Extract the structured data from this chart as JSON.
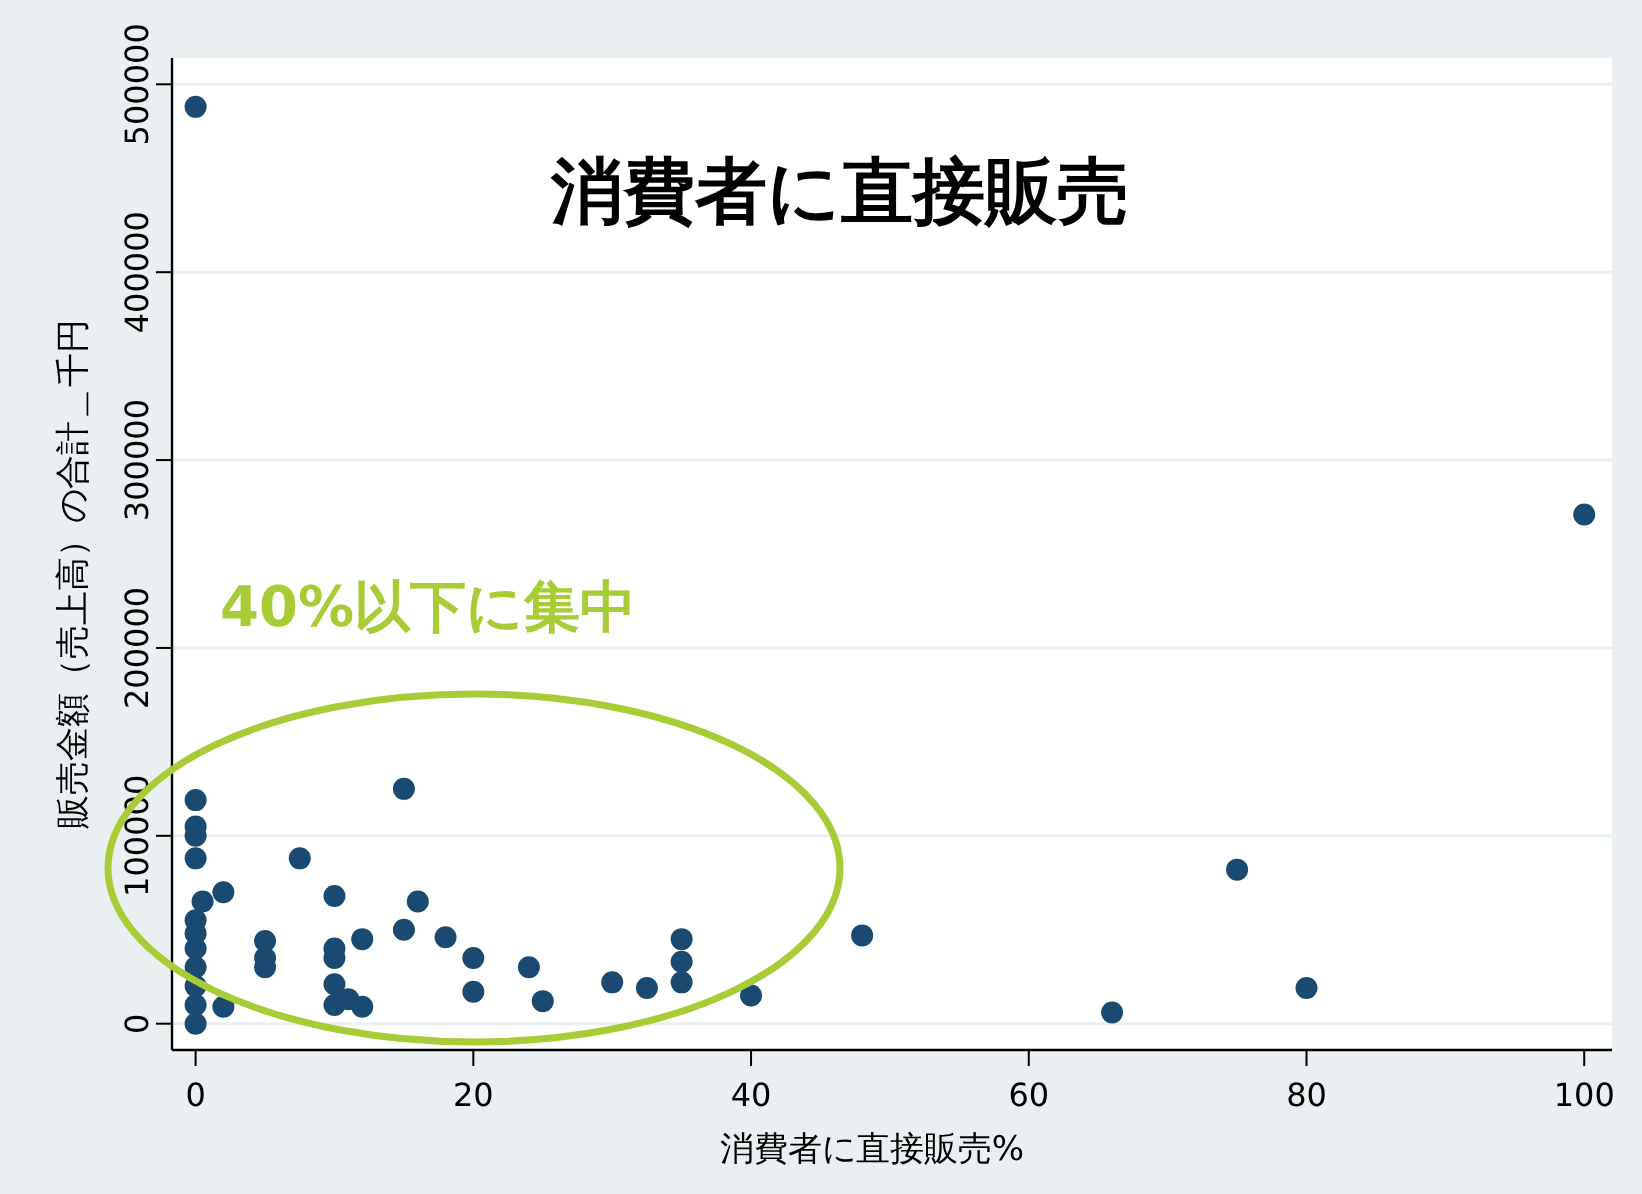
{
  "chart_data": {
    "type": "scatter",
    "title": "消費者に直接販売",
    "xlabel": "消費者に直接販売%",
    "ylabel": "販売金額（売上高）の合計＿千円",
    "annotations": [
      "40%以下に集中"
    ],
    "x": [
      0,
      100,
      0,
      0,
      0,
      0,
      0.5,
      2,
      2,
      0,
      0,
      0,
      0,
      0,
      0,
      0,
      5,
      5,
      5,
      7.5,
      10,
      10,
      10,
      10,
      10,
      11,
      12,
      12,
      15,
      15,
      16,
      18,
      20,
      20,
      24,
      25,
      30,
      32.5,
      35,
      35,
      35,
      40,
      48,
      66,
      75,
      80
    ],
    "series": [
      {
        "color": "#1a4a72",
        "values": [
          488000,
          271000,
          119000,
          105000,
          100000,
          88000,
          65000,
          70000,
          9000,
          0,
          10000,
          20000,
          30000,
          40000,
          48000,
          55000,
          44000,
          35000,
          30000,
          88000,
          68000,
          40000,
          35000,
          21000,
          10000,
          13000,
          45000,
          9000,
          125000,
          50000,
          65000,
          46000,
          35000,
          17000,
          30000,
          12000,
          22000,
          19000,
          45000,
          33000,
          22000,
          15000,
          47000,
          6000,
          82000,
          19000
        ]
      }
    ],
    "xlim": [
      -1.7,
      102
    ],
    "ylim": [
      -14000,
      514000
    ],
    "xticks": [
      0,
      20,
      40,
      60,
      80,
      100
    ],
    "yticks": [
      0,
      100000,
      200000,
      300000,
      400000,
      500000
    ],
    "grid": "y",
    "marker": "circle"
  }
}
